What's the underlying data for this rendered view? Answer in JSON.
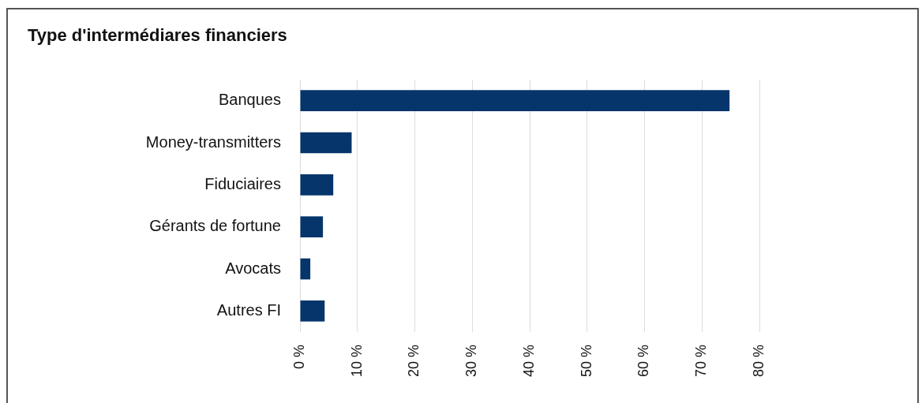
{
  "chart_data": {
    "type": "bar",
    "title": "Type d'intermédiares financiers",
    "orientation": "horizontal",
    "categories": [
      "Banques",
      "Money-transmitters",
      "Fiduciaires",
      "Gérants de fortune",
      "Avocats",
      "Autres FI"
    ],
    "values": [
      74.8,
      9.0,
      5.8,
      4.0,
      1.8,
      4.3
    ],
    "color": "#05356b",
    "xlim": [
      0,
      80
    ],
    "xticks": [
      {
        "value": 0,
        "label": "0 %"
      },
      {
        "value": 10,
        "label": "10 %"
      },
      {
        "value": 20,
        "label": "20 %"
      },
      {
        "value": 30,
        "label": "30 %"
      },
      {
        "value": 40,
        "label": "40 %"
      },
      {
        "value": 50,
        "label": "50 %"
      },
      {
        "value": 60,
        "label": "60 %"
      },
      {
        "value": 70,
        "label": "70 %"
      },
      {
        "value": 80,
        "label": "80 %"
      }
    ],
    "grid": "x",
    "legend": false
  }
}
